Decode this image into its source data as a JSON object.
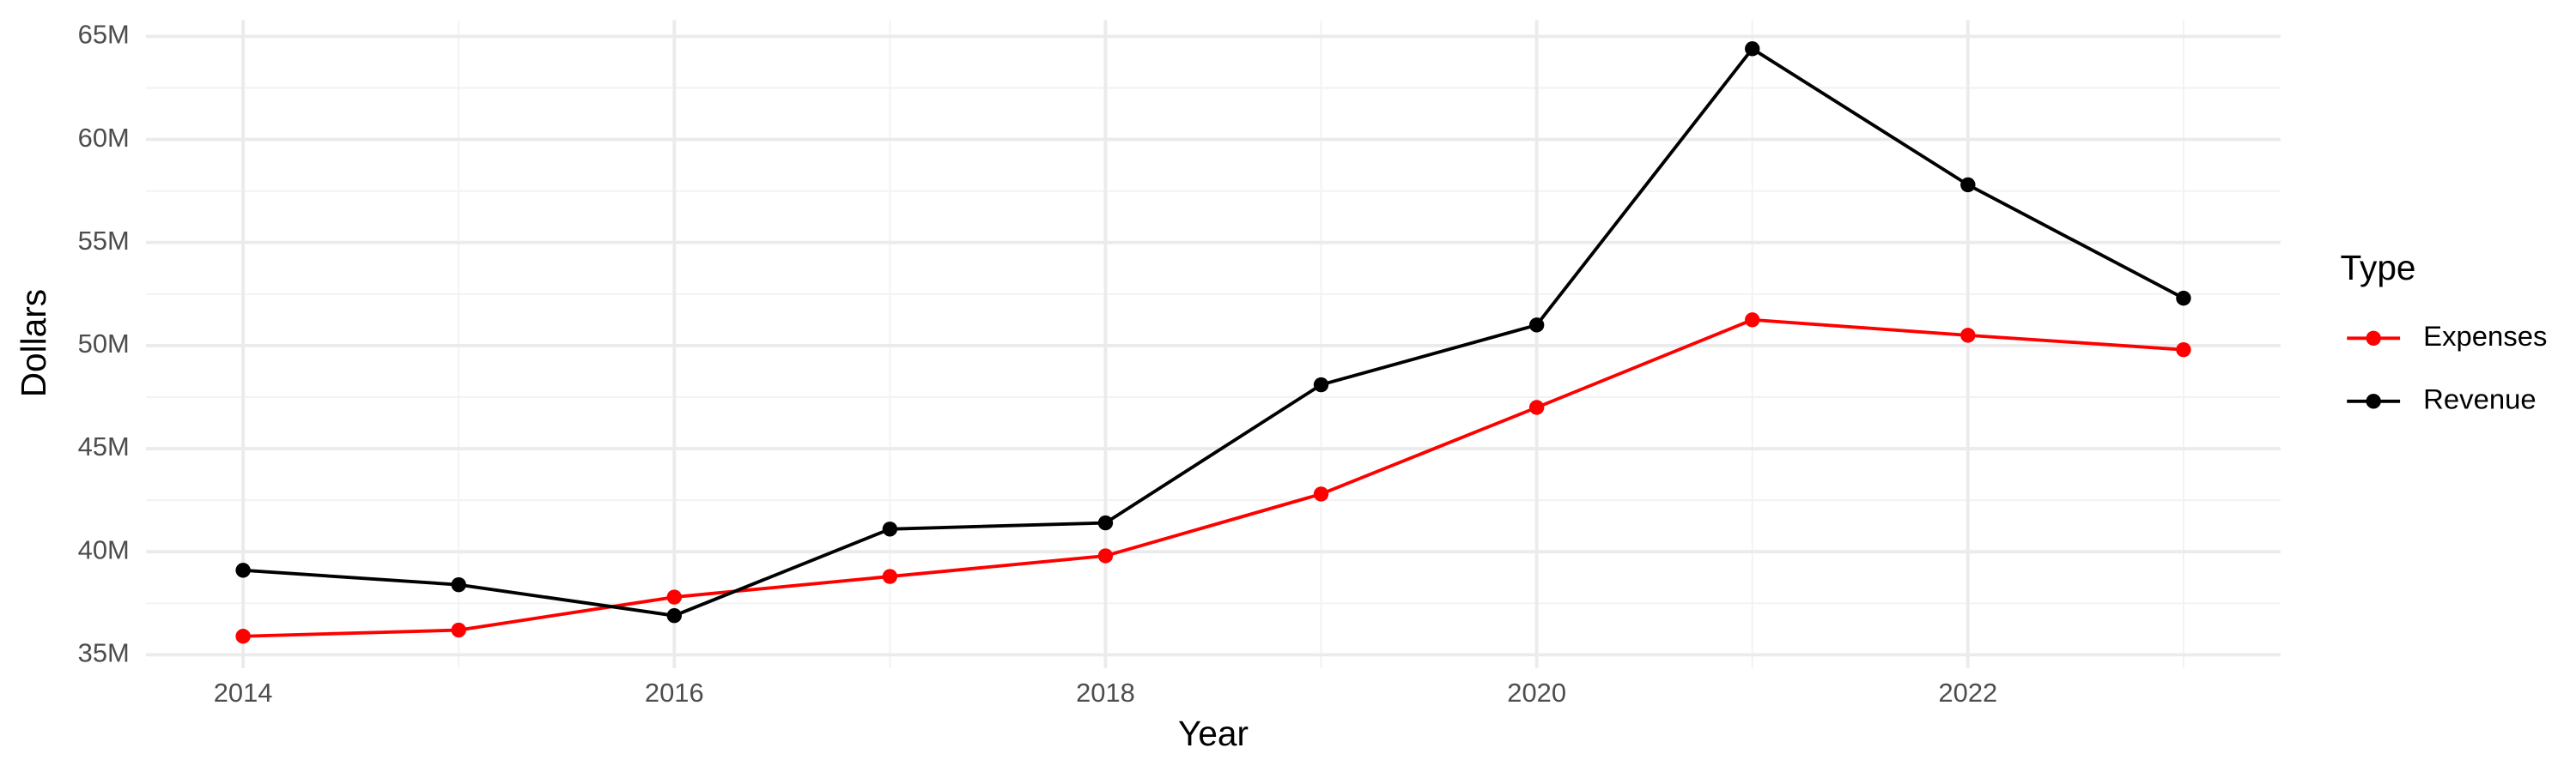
{
  "chart_data": {
    "type": "line",
    "x_label": "Year",
    "y_label": "Dollars",
    "x": [
      2014,
      2015,
      2016,
      2017,
      2018,
      2019,
      2020,
      2021,
      2022,
      2023
    ],
    "series": [
      {
        "name": "Expenses",
        "color": "#ff0000",
        "values": [
          35900000,
          36200000,
          37800000,
          38800000,
          39800000,
          42800000,
          47000000,
          51250000,
          50500000,
          49800000
        ]
      },
      {
        "name": "Revenue",
        "color": "#000000",
        "values": [
          39100000,
          38400000,
          36900000,
          41100000,
          41400000,
          48100000,
          51000000,
          64400000,
          57800000,
          52300000
        ]
      }
    ],
    "xlim": [
      2013.55,
      2023.45
    ],
    "xticks": [
      2014,
      2016,
      2018,
      2020,
      2022
    ],
    "ylim": [
      34350000,
      65800000
    ],
    "yticks": [
      {
        "value": 35000000,
        "label": "35M"
      },
      {
        "value": 40000000,
        "label": "40M"
      },
      {
        "value": 45000000,
        "label": "45M"
      },
      {
        "value": 50000000,
        "label": "50M"
      },
      {
        "value": 55000000,
        "label": "55M"
      },
      {
        "value": 60000000,
        "label": "60M"
      },
      {
        "value": 65000000,
        "label": "65M"
      }
    ],
    "grid": true,
    "legend_title": "Type",
    "legend_position": "right"
  }
}
